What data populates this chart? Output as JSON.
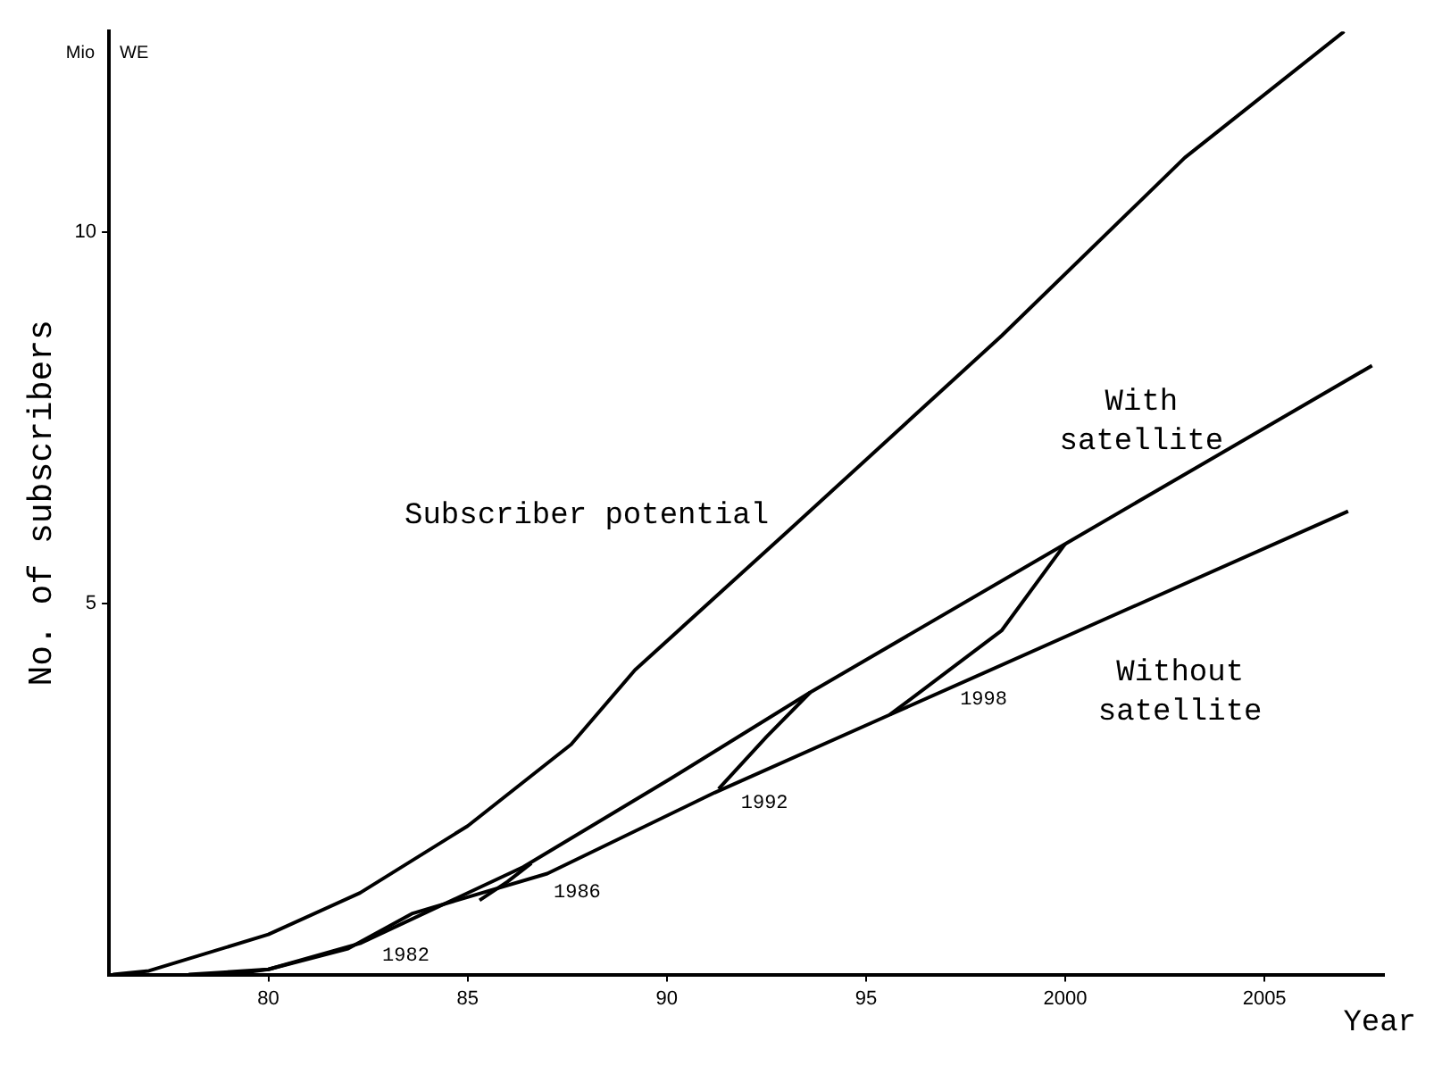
{
  "chart_data": {
    "type": "line",
    "xlabel": "Year",
    "ylabel": "No. of subscribers",
    "xlim": [
      1976,
      2008
    ],
    "ylim": [
      0,
      12.7
    ],
    "xticks": [
      {
        "value": 1980,
        "label": "80"
      },
      {
        "value": 1985,
        "label": "85"
      },
      {
        "value": 1990,
        "label": "90"
      },
      {
        "value": 1995,
        "label": "95"
      },
      {
        "value": 2000,
        "label": "2000"
      },
      {
        "value": 2005,
        "label": "2005"
      }
    ],
    "yticks": [
      5,
      10
    ],
    "grid": false,
    "legend": false,
    "marker": "none",
    "line_style": "solid",
    "series": [
      {
        "name": "Subscriber potential",
        "color": "#000000",
        "x": [
          1976.1,
          1977,
          1980,
          1982.3,
          1985,
          1987.6,
          1989.2,
          1993.1,
          1998.4,
          2003,
          2007
        ],
        "values": [
          0,
          0.05,
          0.54,
          1.1,
          2.0,
          3.1,
          4.1,
          6.0,
          8.6,
          11.0,
          12.7
        ]
      },
      {
        "name": "With satellite",
        "color": "#000000",
        "x": [
          1978,
          1980,
          1982.3,
          1986.4,
          1990.1,
          1993.6,
          2000,
          2007.7
        ],
        "values": [
          0,
          0.07,
          0.42,
          1.45,
          2.64,
          3.8,
          5.8,
          8.2
        ]
      },
      {
        "name": "Without satellite",
        "color": "#000000",
        "x": [
          1979,
          1980,
          1982,
          1983.6,
          1987,
          1991.2,
          1995.6,
          2007.1
        ],
        "values": [
          0,
          0.07,
          0.35,
          0.82,
          1.36,
          2.45,
          3.5,
          6.24
        ]
      },
      {
        "color": "#000000",
        "x": [
          1985.3,
          1986,
          1986.6
        ],
        "values": [
          1.0,
          1.25,
          1.5
        ]
      },
      {
        "color": "#000000",
        "x": [
          1991.3,
          1992.5,
          1993.6
        ],
        "values": [
          2.5,
          3.2,
          3.8
        ]
      },
      {
        "color": "#000000",
        "x": [
          1995.6,
          1998.4,
          2000
        ],
        "values": [
          3.5,
          4.63,
          5.8
        ]
      }
    ],
    "annotations": [
      "Mio",
      "WE",
      {
        "text": "1982",
        "x": 1982.5,
        "y": 0.45
      },
      {
        "text": "1986",
        "x": 1986.8,
        "y": 1.3
      },
      {
        "text": "1992",
        "x": 1991.5,
        "y": 2.5
      },
      {
        "text": "1998",
        "x": 1997,
        "y": 3.9
      }
    ]
  }
}
